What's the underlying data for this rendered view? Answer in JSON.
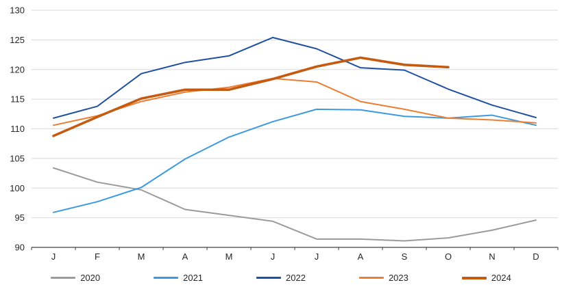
{
  "chart_data": {
    "type": "line",
    "title": "",
    "xlabel": "",
    "ylabel": "",
    "categories": [
      "J",
      "F",
      "M",
      "A",
      "M",
      "J",
      "J",
      "A",
      "S",
      "O",
      "N",
      "D"
    ],
    "ylim": [
      90,
      130
    ],
    "ytick_step": 5,
    "grid": "horizontal",
    "legend_position": "bottom",
    "axis_color": "#404040",
    "gridline_color": "#d9d9d9",
    "series": [
      {
        "name": "2020",
        "color": "#9a9a9a",
        "thick": false,
        "values": [
          103.4,
          101.0,
          99.7,
          96.4,
          95.4,
          94.4,
          91.4,
          91.4,
          91.1,
          91.6,
          92.9,
          94.6
        ]
      },
      {
        "name": "2021",
        "color": "#3a99e0",
        "thick": false,
        "values": [
          95.9,
          97.7,
          100.1,
          104.9,
          108.6,
          111.2,
          113.3,
          113.2,
          112.1,
          111.8,
          112.3,
          110.6
        ]
      },
      {
        "name": "2022",
        "color": "#1f4fa0",
        "thick": false,
        "values": [
          111.8,
          113.8,
          119.3,
          121.2,
          122.3,
          125.4,
          123.5,
          120.3,
          119.9,
          116.7,
          114.0,
          111.9
        ]
      },
      {
        "name": "2023",
        "color": "#ed7d31",
        "thick": false,
        "values": [
          110.6,
          112.2,
          114.6,
          116.2,
          117.0,
          118.5,
          117.9,
          114.6,
          113.3,
          111.8,
          111.5,
          111.0
        ]
      },
      {
        "name": "2024",
        "color": "#c55a11",
        "thick": true,
        "values": [
          108.8,
          112.0,
          115.1,
          116.6,
          116.6,
          118.4,
          120.5,
          122.0,
          120.8,
          120.4
        ]
      }
    ]
  }
}
